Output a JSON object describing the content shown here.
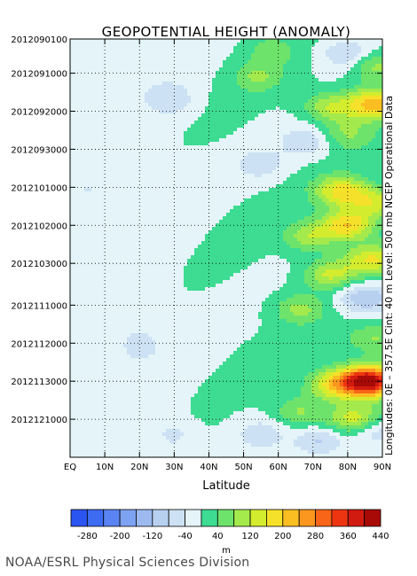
{
  "title": "GEOPOTENTIAL HEIGHT (ANOMALY)",
  "right_label": "Longitudes: 0E – 357.5E     Cint: 40 m     Level: 500 mb     NCEP Operational Data",
  "credit": "NOAA/ESRL Physical Sciences Division",
  "chart_data": {
    "type": "heatmap",
    "title": "GEOPOTENTIAL HEIGHT (ANOMALY)",
    "xlabel": "Latitude",
    "ylabel": "",
    "x_ticks": [
      "EQ",
      "10N",
      "20N",
      "30N",
      "40N",
      "50N",
      "60N",
      "70N",
      "80N",
      "90N"
    ],
    "x_values": [
      0,
      10,
      20,
      30,
      40,
      50,
      60,
      70,
      80,
      90
    ],
    "xlim": [
      0,
      90
    ],
    "y_ticks": [
      "2012090100",
      "2012091000",
      "2012092000",
      "2012093000",
      "2012101000",
      "2012102000",
      "2012103000",
      "2012111000",
      "2012112000",
      "2012113000",
      "2012121000"
    ],
    "y_days": [
      0,
      9,
      19,
      29,
      39,
      49,
      59,
      70,
      80,
      90,
      100
    ],
    "ylim_days": [
      0,
      110
    ],
    "grid": true,
    "colorbar": {
      "unit": "m",
      "tick_labels": [
        "-280",
        "-200",
        "-120",
        "-40",
        "40",
        "120",
        "200",
        "280",
        "360",
        "440"
      ],
      "levels": [
        -280,
        -240,
        -200,
        -160,
        -120,
        -80,
        -40,
        0,
        40,
        80,
        120,
        160,
        200,
        240,
        280,
        320,
        360,
        400,
        440
      ],
      "colors": [
        "#2a55f0",
        "#3d6cf3",
        "#5a84f3",
        "#7ea2f2",
        "#9cbaf0",
        "#b8d0f0",
        "#cde1f4",
        "#e4f4f8",
        "#3ddc92",
        "#6ee36c",
        "#a4ea4c",
        "#d4ec2e",
        "#f6e12a",
        "#fbbe22",
        "#fb961e",
        "#f86518",
        "#ee3512",
        "#d11a10",
        "#a80a08"
      ]
    },
    "features": [
      {
        "lat": 58,
        "day": 3,
        "value": 60
      },
      {
        "lat": 80,
        "day": 4,
        "value": -90
      },
      {
        "lat": 88,
        "day": 7,
        "value": 110
      },
      {
        "lat": 54,
        "day": 10,
        "value": 80
      },
      {
        "lat": 88,
        "day": 17,
        "value": 230
      },
      {
        "lat": 75,
        "day": 18,
        "value": 120
      },
      {
        "lat": 30,
        "day": 16,
        "value": -60
      },
      {
        "lat": 80,
        "day": 25,
        "value": 80
      },
      {
        "lat": 68,
        "day": 27,
        "value": -70
      },
      {
        "lat": 55,
        "day": 33,
        "value": -60
      },
      {
        "lat": 78,
        "day": 40,
        "value": 170
      },
      {
        "lat": 88,
        "day": 43,
        "value": 140
      },
      {
        "lat": 80,
        "day": 49,
        "value": 200
      },
      {
        "lat": 69,
        "day": 52,
        "value": 110
      },
      {
        "lat": 87,
        "day": 58,
        "value": 160
      },
      {
        "lat": 75,
        "day": 62,
        "value": 130
      },
      {
        "lat": 85,
        "day": 68,
        "value": -130
      },
      {
        "lat": 66,
        "day": 71,
        "value": 90
      },
      {
        "lat": 88,
        "day": 79,
        "value": 90
      },
      {
        "lat": 86,
        "day": 90,
        "value": 440
      },
      {
        "lat": 76,
        "day": 91,
        "value": 170
      },
      {
        "lat": 66,
        "day": 98,
        "value": 90
      },
      {
        "lat": 82,
        "day": 100,
        "value": 150
      },
      {
        "lat": 88,
        "day": 103,
        "value": -90
      },
      {
        "lat": 72,
        "day": 106,
        "value": -90
      },
      {
        "lat": 55,
        "day": 104,
        "value": -60
      },
      {
        "lat": 30,
        "day": 104,
        "value": -45
      },
      {
        "lat": 5,
        "day": 40,
        "value": -30
      },
      {
        "lat": 20,
        "day": 80,
        "value": -35
      }
    ]
  }
}
